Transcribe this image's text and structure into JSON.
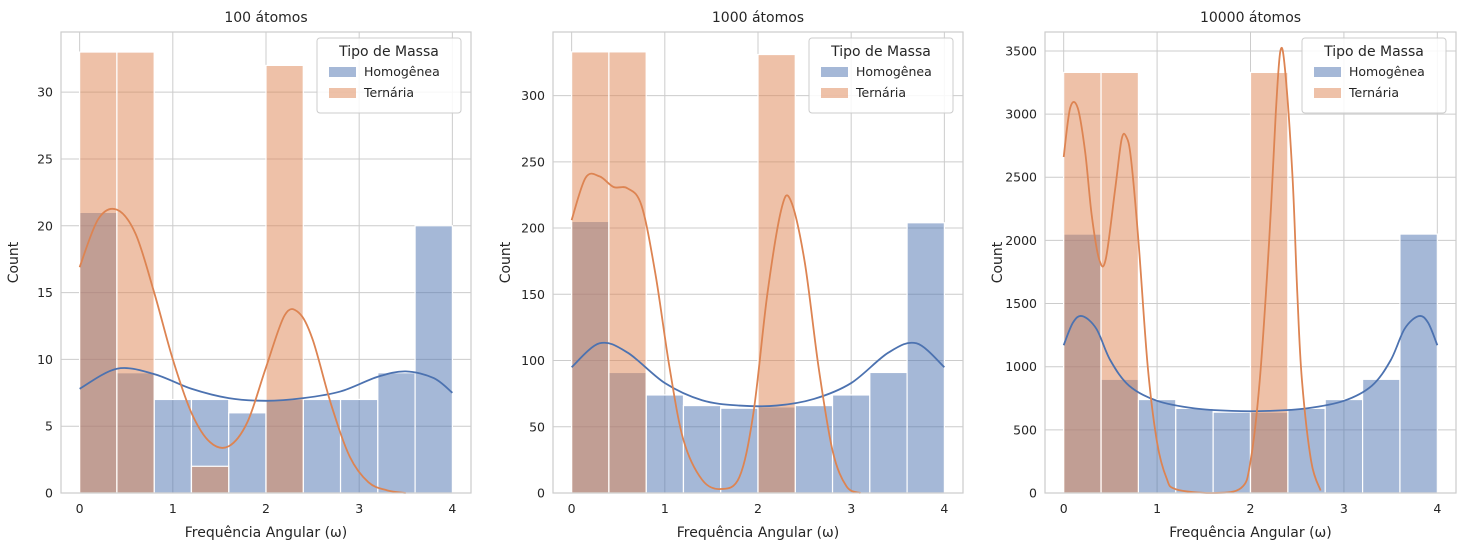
{
  "chart_data": [
    {
      "type": "histogram",
      "title": "100 átomos",
      "xlabel": "Frequência Angular (ω)",
      "ylabel": "Count",
      "xlim": [
        -0.2,
        4.2
      ],
      "ylim": [
        0,
        34.5
      ],
      "xticks": [
        0,
        1,
        2,
        3,
        4
      ],
      "yticks": [
        0,
        5,
        10,
        15,
        20,
        25,
        30
      ],
      "grid": true,
      "legend": {
        "title": "Tipo de Massa",
        "position": "top-right"
      },
      "bin_edges": [
        0,
        0.4,
        0.8,
        1.2,
        1.6,
        2.0,
        2.4,
        2.8,
        3.2,
        3.6,
        4.0
      ],
      "series": [
        {
          "name": "Homogênea",
          "color": "#4c72b0",
          "counts": [
            21,
            9,
            7,
            7,
            6,
            7,
            7,
            7,
            9,
            20
          ],
          "kde": {
            "x": [
              0,
              0.4,
              0.8,
              1.2,
              1.6,
              2.0,
              2.4,
              2.8,
              3.2,
              3.5,
              3.8,
              4.0
            ],
            "y": [
              7.8,
              9.3,
              8.9,
              7.8,
              7.1,
              6.9,
              7.1,
              7.6,
              8.7,
              9.1,
              8.6,
              7.5
            ]
          }
        },
        {
          "name": "Ternária",
          "color": "#dd8452",
          "counts": [
            33,
            33,
            0,
            2,
            0,
            32,
            0,
            0,
            0,
            0
          ],
          "kde": {
            "x": [
              0,
              0.2,
              0.4,
              0.6,
              0.8,
              1.0,
              1.2,
              1.4,
              1.6,
              1.8,
              2.0,
              2.2,
              2.35,
              2.5,
              2.7,
              2.9,
              3.1,
              3.3,
              3.5
            ],
            "y": [
              16.9,
              20.5,
              21.2,
              19.4,
              15.0,
              10.0,
              6.0,
              3.8,
              3.5,
              5.3,
              9.4,
              13.3,
              13.5,
              11.5,
              6.6,
              2.7,
              0.8,
              0.2,
              0.0
            ]
          }
        }
      ]
    },
    {
      "type": "histogram",
      "title": "1000 átomos",
      "xlabel": "Frequência Angular (ω)",
      "ylabel": "Count",
      "xlim": [
        -0.2,
        4.2
      ],
      "ylim": [
        0,
        348
      ],
      "xticks": [
        0,
        1,
        2,
        3,
        4
      ],
      "yticks": [
        0,
        50,
        100,
        150,
        200,
        250,
        300
      ],
      "grid": true,
      "legend": {
        "title": "Tipo de Massa",
        "position": "top-right"
      },
      "bin_edges": [
        0,
        0.4,
        0.8,
        1.2,
        1.6,
        2.0,
        2.4,
        2.8,
        3.2,
        3.6,
        4.0
      ],
      "series": [
        {
          "name": "Homogênea",
          "color": "#4c72b0",
          "counts": [
            205,
            91,
            74,
            66,
            64,
            65,
            66,
            74,
            91,
            204
          ],
          "kde": {
            "x": [
              0,
              0.3,
              0.6,
              1.0,
              1.4,
              1.8,
              2.2,
              2.6,
              3.0,
              3.4,
              3.7,
              4.0
            ],
            "y": [
              95,
              113,
              106,
              83,
              70,
              66,
              66,
              71,
              83,
              106,
              113,
              95
            ]
          }
        },
        {
          "name": "Ternária",
          "color": "#dd8452",
          "counts": [
            333,
            333,
            0,
            0,
            0,
            331,
            0,
            0,
            0,
            0
          ],
          "kde": {
            "x": [
              0,
              0.15,
              0.3,
              0.45,
              0.6,
              0.75,
              0.9,
              1.05,
              1.2,
              1.4,
              1.6,
              1.8,
              1.95,
              2.1,
              2.25,
              2.35,
              2.5,
              2.65,
              2.8,
              2.95,
              3.1
            ],
            "y": [
              206,
              238,
              239,
              231,
              230,
              217,
              165,
              95,
              40,
              10,
              3,
              12,
              60,
              150,
              214,
              221,
              175,
              95,
              32,
              5,
              0
            ]
          }
        }
      ]
    },
    {
      "type": "histogram",
      "title": "10000 átomos",
      "xlabel": "Frequência Angular (ω)",
      "ylabel": "Count",
      "xlim": [
        -0.2,
        4.2
      ],
      "ylim": [
        0,
        3650
      ],
      "xticks": [
        0,
        1,
        2,
        3,
        4
      ],
      "yticks": [
        0,
        500,
        1000,
        1500,
        2000,
        2500,
        3000,
        3500
      ],
      "grid": true,
      "legend": {
        "title": "Tipo de Massa",
        "position": "top-right"
      },
      "bin_edges": [
        0,
        0.4,
        0.8,
        1.2,
        1.6,
        2.0,
        2.4,
        2.8,
        3.2,
        3.6,
        4.0
      ],
      "series": [
        {
          "name": "Homogênea",
          "color": "#4c72b0",
          "counts": [
            2050,
            900,
            740,
            670,
            640,
            640,
            670,
            740,
            900,
            2050
          ],
          "kde": {
            "x": [
              0,
              0.1,
              0.2,
              0.35,
              0.5,
              0.7,
              1.0,
              1.4,
              1.8,
              2.2,
              2.6,
              3.0,
              3.3,
              3.5,
              3.65,
              3.8,
              3.9,
              4.0
            ],
            "y": [
              1170,
              1350,
              1400,
              1300,
              1050,
              850,
              730,
              670,
              650,
              650,
              670,
              730,
              850,
              1050,
              1300,
              1400,
              1350,
              1170
            ]
          }
        },
        {
          "name": "Ternária",
          "color": "#dd8452",
          "counts": [
            3330,
            3330,
            0,
            0,
            0,
            3330,
            0,
            0,
            0,
            0
          ],
          "kde": {
            "x": [
              0,
              0.07,
              0.15,
              0.23,
              0.3,
              0.38,
              0.45,
              0.55,
              0.62,
              0.67,
              0.72,
              0.8,
              0.9,
              1.0,
              1.1,
              1.2,
              1.6,
              1.9,
              2.0,
              2.1,
              2.2,
              2.27,
              2.32,
              2.37,
              2.45,
              2.5,
              2.55,
              2.65,
              2.75
            ],
            "y": [
              2660,
              3050,
              3050,
              2700,
              2200,
              1850,
              1850,
              2400,
              2800,
              2820,
              2650,
              2000,
              1000,
              400,
              120,
              30,
              0,
              40,
              250,
              900,
              2000,
              3000,
              3500,
              3350,
              2500,
              1600,
              900,
              250,
              20
            ]
          }
        }
      ]
    }
  ]
}
